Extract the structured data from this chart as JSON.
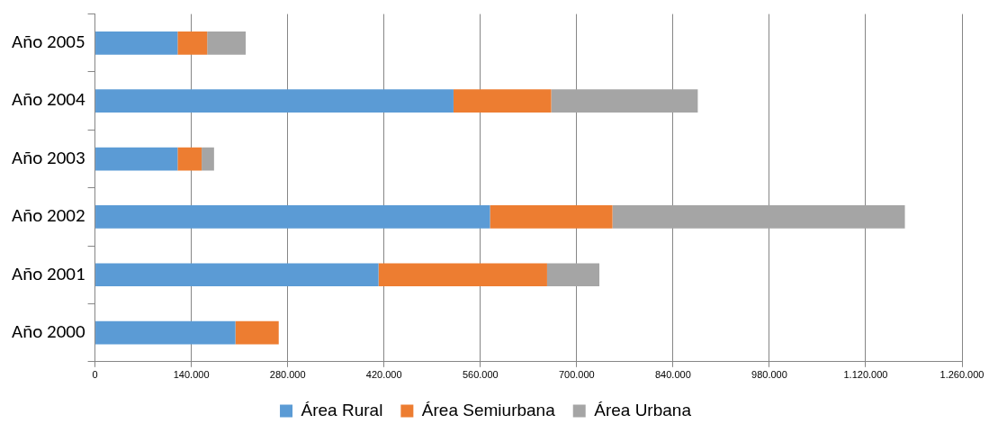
{
  "chart_data": {
    "type": "bar",
    "orientation": "horizontal",
    "stacked": true,
    "categories": [
      "Año 2005",
      "Año 2004",
      "Año 2003",
      "Año 2002",
      "Año 2001",
      "Año 2000"
    ],
    "series": [
      {
        "name": "Área Rural",
        "color": "#5b9bd5",
        "values": [
          120000,
          521000,
          120000,
          574000,
          412000,
          204000
        ]
      },
      {
        "name": "Área Semiurbana",
        "color": "#ed7d31",
        "values": [
          43000,
          142000,
          35000,
          178000,
          245000,
          63000
        ]
      },
      {
        "name": "Área Urbana",
        "color": "#a5a5a5",
        "values": [
          56000,
          213000,
          18000,
          425000,
          76000,
          0
        ]
      }
    ],
    "xlim": [
      0,
      1260000
    ],
    "xticks": [
      {
        "value": 0,
        "label": "0"
      },
      {
        "value": 140000,
        "label": "140.000"
      },
      {
        "value": 280000,
        "label": "280.000"
      },
      {
        "value": 420000,
        "label": "420.000"
      },
      {
        "value": 560000,
        "label": "560.000"
      },
      {
        "value": 700000,
        "label": "700.000"
      },
      {
        "value": 840000,
        "label": "840.000"
      },
      {
        "value": 980000,
        "label": "980.000"
      },
      {
        "value": 1120000,
        "label": "1.120.000"
      },
      {
        "value": 1260000,
        "label": "1.260.000"
      }
    ],
    "grid": "x",
    "legend": "bottom"
  }
}
